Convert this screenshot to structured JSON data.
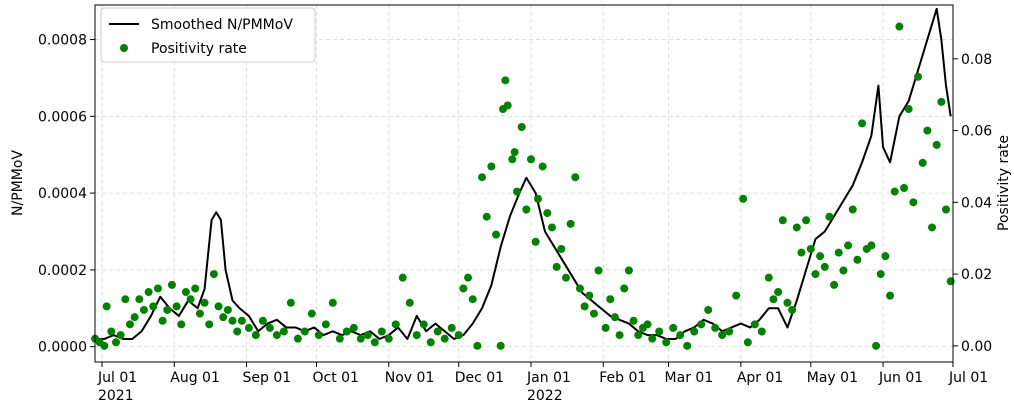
{
  "chart_data": {
    "type": "line",
    "ylabel": "N/PMMoV",
    "y2label": "Positivity rate",
    "grid": true,
    "legend": "upper left",
    "xlim": [
      "2021-06-28",
      "2022-07-01"
    ],
    "ylim": [
      -4e-05,
      0.00089
    ],
    "y2lim": [
      -0.0045,
      0.095
    ],
    "xticks": [
      {
        "value": "2021-07-01",
        "label": "Jul 01\n2021"
      },
      {
        "value": "2021-08-01",
        "label": "Aug 01"
      },
      {
        "value": "2021-09-01",
        "label": "Sep 01"
      },
      {
        "value": "2021-10-01",
        "label": "Oct 01"
      },
      {
        "value": "2021-11-01",
        "label": "Nov 01"
      },
      {
        "value": "2021-12-01",
        "label": "Dec 01"
      },
      {
        "value": "2022-01-01",
        "label": "Jan 01\n2022"
      },
      {
        "value": "2022-02-01",
        "label": "Feb 01"
      },
      {
        "value": "2022-03-01",
        "label": "Mar 01"
      },
      {
        "value": "2022-04-01",
        "label": "Apr 01"
      },
      {
        "value": "2022-05-01",
        "label": "May 01"
      },
      {
        "value": "2022-06-01",
        "label": "Jun 01"
      },
      {
        "value": "2022-07-01",
        "label": "Jul 01"
      }
    ],
    "yticks": [
      {
        "value": 0,
        "label": "0.0000"
      },
      {
        "value": 0.0002,
        "label": "0.0002"
      },
      {
        "value": 0.0004,
        "label": "0.0004"
      },
      {
        "value": 0.0006,
        "label": "0.0006"
      },
      {
        "value": 0.0008,
        "label": "0.0008"
      }
    ],
    "y2ticks": [
      {
        "value": 0,
        "label": "0.00"
      },
      {
        "value": 0.02,
        "label": "0.02"
      },
      {
        "value": 0.04,
        "label": "0.04"
      },
      {
        "value": 0.06,
        "label": "0.06"
      },
      {
        "value": 0.08,
        "label": "0.08"
      }
    ],
    "series": [
      {
        "name": "Smoothed N/PMMoV",
        "type": "line",
        "color": "#000000",
        "x": [
          "2021-06-28",
          "2021-07-02",
          "2021-07-06",
          "2021-07-10",
          "2021-07-14",
          "2021-07-18",
          "2021-07-22",
          "2021-07-26",
          "2021-07-30",
          "2021-08-03",
          "2021-08-07",
          "2021-08-11",
          "2021-08-14",
          "2021-08-17",
          "2021-08-19",
          "2021-08-21",
          "2021-08-23",
          "2021-08-26",
          "2021-08-29",
          "2021-09-02",
          "2021-09-06",
          "2021-09-10",
          "2021-09-14",
          "2021-09-18",
          "2021-09-22",
          "2021-09-26",
          "2021-09-30",
          "2021-10-04",
          "2021-10-08",
          "2021-10-12",
          "2021-10-16",
          "2021-10-20",
          "2021-10-24",
          "2021-10-28",
          "2021-11-01",
          "2021-11-05",
          "2021-11-09",
          "2021-11-13",
          "2021-11-17",
          "2021-11-21",
          "2021-11-25",
          "2021-11-29",
          "2021-12-03",
          "2021-12-07",
          "2021-12-11",
          "2021-12-15",
          "2021-12-19",
          "2021-12-23",
          "2021-12-27",
          "2021-12-30",
          "2022-01-03",
          "2022-01-07",
          "2022-01-11",
          "2022-01-15",
          "2022-01-19",
          "2022-01-23",
          "2022-01-27",
          "2022-01-31",
          "2022-02-04",
          "2022-02-08",
          "2022-02-12",
          "2022-02-16",
          "2022-02-20",
          "2022-02-24",
          "2022-02-28",
          "2022-03-04",
          "2022-03-08",
          "2022-03-12",
          "2022-03-16",
          "2022-03-20",
          "2022-03-24",
          "2022-03-28",
          "2022-04-01",
          "2022-04-05",
          "2022-04-09",
          "2022-04-13",
          "2022-04-17",
          "2022-04-21",
          "2022-04-25",
          "2022-04-29",
          "2022-05-03",
          "2022-05-07",
          "2022-05-11",
          "2022-05-15",
          "2022-05-19",
          "2022-05-23",
          "2022-05-27",
          "2022-05-30",
          "2022-06-01",
          "2022-06-04",
          "2022-06-08",
          "2022-06-12",
          "2022-06-16",
          "2022-06-20",
          "2022-06-24",
          "2022-06-26",
          "2022-06-28",
          "2022-06-30"
        ],
        "values": [
          2e-05,
          2e-05,
          3e-05,
          2e-05,
          2e-05,
          4e-05,
          8e-05,
          0.00013,
          0.0001,
          8e-05,
          0.00012,
          0.0001,
          0.00015,
          0.00033,
          0.00035,
          0.00033,
          0.0002,
          0.00012,
          0.0001,
          8e-05,
          4e-05,
          6e-05,
          7e-05,
          5e-05,
          5e-05,
          4e-05,
          5e-05,
          3e-05,
          4e-05,
          3e-05,
          4e-05,
          3e-05,
          4e-05,
          2e-05,
          3e-05,
          5e-05,
          2e-05,
          8e-05,
          4e-05,
          6e-05,
          4e-05,
          2e-05,
          3e-05,
          6e-05,
          0.0001,
          0.00016,
          0.00026,
          0.00034,
          0.0004,
          0.00044,
          0.0004,
          0.0003,
          0.00026,
          0.00022,
          0.00018,
          0.00014,
          0.00012,
          0.0001,
          8e-05,
          7e-05,
          6e-05,
          4e-05,
          3e-05,
          3e-05,
          2e-05,
          2e-05,
          4e-05,
          5e-05,
          7e-05,
          6e-05,
          4e-05,
          5e-05,
          6e-05,
          5e-05,
          7e-05,
          0.0001,
          0.0001,
          5e-05,
          0.00012,
          0.0002,
          0.00028,
          0.0003,
          0.00034,
          0.00038,
          0.00042,
          0.00048,
          0.00055,
          0.00068,
          0.00052,
          0.00048,
          0.0006,
          0.00064,
          0.00072,
          0.0008,
          0.00088,
          0.0008,
          0.00068,
          0.0006
        ]
      },
      {
        "name": "Positivity rate",
        "type": "scatter",
        "color": "#008000",
        "axis": "y2",
        "x": [
          "2021-06-28",
          "2021-06-30",
          "2021-07-02",
          "2021-07-03",
          "2021-07-05",
          "2021-07-07",
          "2021-07-09",
          "2021-07-11",
          "2021-07-13",
          "2021-07-15",
          "2021-07-17",
          "2021-07-19",
          "2021-07-21",
          "2021-07-23",
          "2021-07-25",
          "2021-07-27",
          "2021-07-29",
          "2021-07-31",
          "2021-08-02",
          "2021-08-04",
          "2021-08-06",
          "2021-08-08",
          "2021-08-10",
          "2021-08-12",
          "2021-08-14",
          "2021-08-16",
          "2021-08-18",
          "2021-08-20",
          "2021-08-22",
          "2021-08-24",
          "2021-08-26",
          "2021-08-28",
          "2021-08-30",
          "2021-09-02",
          "2021-09-05",
          "2021-09-08",
          "2021-09-11",
          "2021-09-14",
          "2021-09-17",
          "2021-09-20",
          "2021-09-23",
          "2021-09-26",
          "2021-09-29",
          "2021-10-02",
          "2021-10-05",
          "2021-10-08",
          "2021-10-11",
          "2021-10-14",
          "2021-10-17",
          "2021-10-20",
          "2021-10-23",
          "2021-10-26",
          "2021-10-29",
          "2021-11-01",
          "2021-11-04",
          "2021-11-07",
          "2021-11-10",
          "2021-11-13",
          "2021-11-16",
          "2021-11-19",
          "2021-11-22",
          "2021-11-25",
          "2021-11-28",
          "2021-12-01",
          "2021-12-03",
          "2021-12-05",
          "2021-12-07",
          "2021-12-09",
          "2021-12-11",
          "2021-12-13",
          "2021-12-15",
          "2021-12-17",
          "2021-12-19",
          "2021-12-20",
          "2021-12-21",
          "2021-12-22",
          "2021-12-24",
          "2021-12-25",
          "2021-12-26",
          "2021-12-28",
          "2021-12-30",
          "2022-01-01",
          "2022-01-03",
          "2022-01-04",
          "2022-01-06",
          "2022-01-08",
          "2022-01-10",
          "2022-01-12",
          "2022-01-14",
          "2022-01-16",
          "2022-01-18",
          "2022-01-20",
          "2022-01-22",
          "2022-01-24",
          "2022-01-26",
          "2022-01-28",
          "2022-01-30",
          "2022-02-02",
          "2022-02-04",
          "2022-02-06",
          "2022-02-08",
          "2022-02-10",
          "2022-02-12",
          "2022-02-14",
          "2022-02-16",
          "2022-02-18",
          "2022-02-20",
          "2022-02-22",
          "2022-02-25",
          "2022-02-28",
          "2022-03-03",
          "2022-03-06",
          "2022-03-09",
          "2022-03-12",
          "2022-03-15",
          "2022-03-18",
          "2022-03-21",
          "2022-03-24",
          "2022-03-27",
          "2022-03-30",
          "2022-04-02",
          "2022-04-04",
          "2022-04-07",
          "2022-04-10",
          "2022-04-13",
          "2022-04-15",
          "2022-04-17",
          "2022-04-19",
          "2022-04-21",
          "2022-04-23",
          "2022-04-25",
          "2022-04-27",
          "2022-04-29",
          "2022-05-01",
          "2022-05-03",
          "2022-05-05",
          "2022-05-07",
          "2022-05-09",
          "2022-05-11",
          "2022-05-13",
          "2022-05-15",
          "2022-05-17",
          "2022-05-19",
          "2022-05-21",
          "2022-05-23",
          "2022-05-25",
          "2022-05-27",
          "2022-05-29",
          "2022-05-31",
          "2022-06-02",
          "2022-06-04",
          "2022-06-06",
          "2022-06-08",
          "2022-06-10",
          "2022-06-12",
          "2022-06-14",
          "2022-06-16",
          "2022-06-18",
          "2022-06-20",
          "2022-06-22",
          "2022-06-24",
          "2022-06-26",
          "2022-06-28",
          "2022-06-30"
        ],
        "values": [
          0.002,
          0.001,
          0,
          0.011,
          0.004,
          0.001,
          0.003,
          0.013,
          0.006,
          0.008,
          0.013,
          0.01,
          0.015,
          0.011,
          0.016,
          0.007,
          0.01,
          0.017,
          0.011,
          0.006,
          0.015,
          0.013,
          0.016,
          0.009,
          0.012,
          0.006,
          0.02,
          0.011,
          0.008,
          0.01,
          0.007,
          0.004,
          0.007,
          0.005,
          0.003,
          0.007,
          0.005,
          0.003,
          0.004,
          0.012,
          0.002,
          0.004,
          0.009,
          0.003,
          0.006,
          0.012,
          0.002,
          0.004,
          0.005,
          0.002,
          0.003,
          0.001,
          0.004,
          0.002,
          0.006,
          0.019,
          0.012,
          0.003,
          0.006,
          0.001,
          0.004,
          0.002,
          0.005,
          0.003,
          0.016,
          0.019,
          0.013,
          0,
          0.047,
          0.036,
          0.05,
          0.031,
          0,
          0.066,
          0.074,
          0.067,
          0.052,
          0.054,
          0.043,
          0.061,
          0.038,
          0.052,
          0.029,
          0.041,
          0.05,
          0.037,
          0.033,
          0.022,
          0.027,
          0.019,
          0.034,
          0.047,
          0.016,
          0.011,
          0.014,
          0.009,
          0.021,
          0.005,
          0.013,
          0.008,
          0.003,
          0.016,
          0.021,
          0.007,
          0.003,
          0.005,
          0.006,
          0.002,
          0.004,
          0.001,
          0.005,
          0.003,
          0,
          0.004,
          0.006,
          0.01,
          0.005,
          0.003,
          0.004,
          0.014,
          0.041,
          0.001,
          0.006,
          0.004,
          0.019,
          0.013,
          0.015,
          0.035,
          0.012,
          0.01,
          0.033,
          0.026,
          0.035,
          0.027,
          0.02,
          0.025,
          0.022,
          0.036,
          0.017,
          0.026,
          0.021,
          0.028,
          0.038,
          0.024,
          0.062,
          0.027,
          0.028,
          0,
          0.02,
          0.025,
          0.014,
          0.043,
          0.089,
          0.044,
          0.066,
          0.04,
          0.075,
          0.051,
          0.06,
          0.033,
          0.056,
          0.068,
          0.038,
          0.018
        ]
      }
    ]
  }
}
